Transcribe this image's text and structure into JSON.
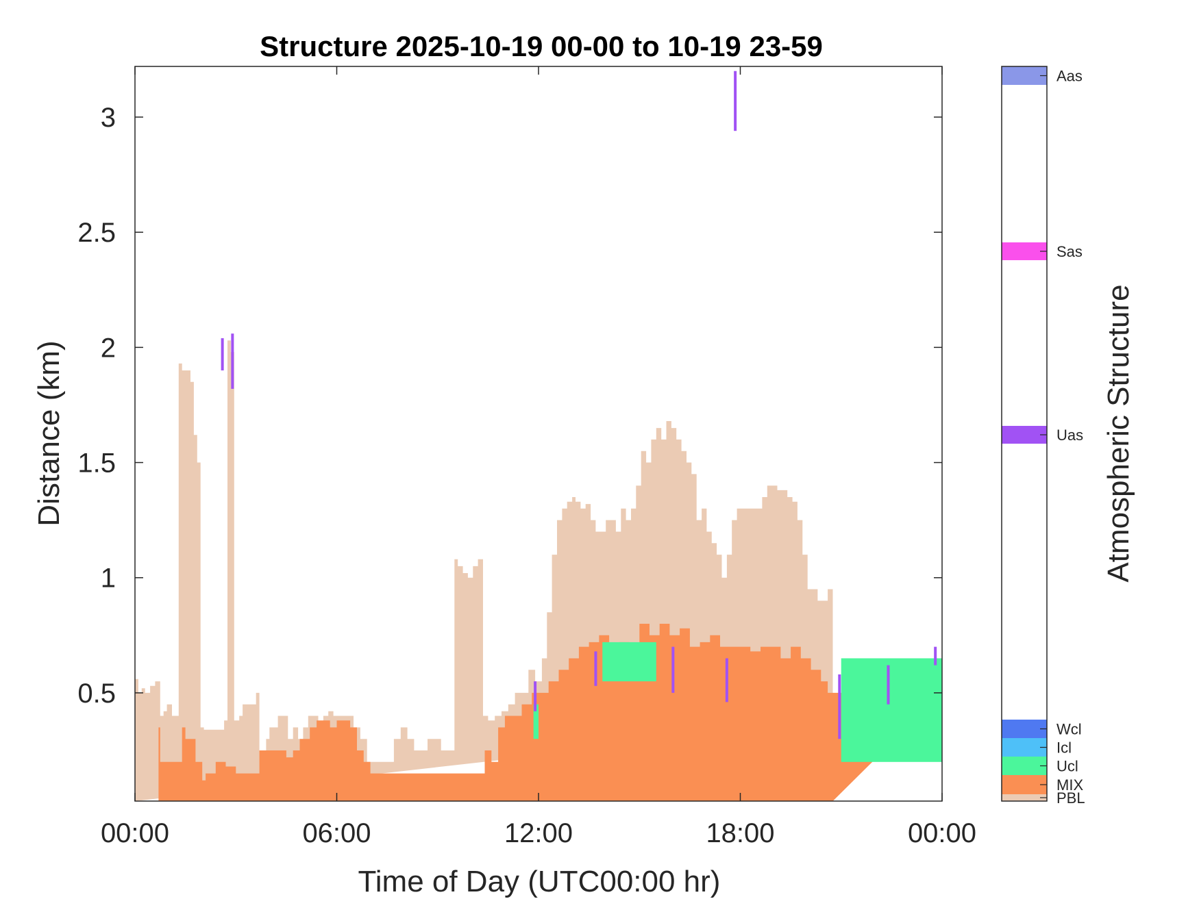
{
  "chart_data": {
    "type": "area",
    "title": "Structure 2025-10-19 00-00 to 10-19 23-59",
    "xlabel": "Time of Day (UTC00:00 hr)",
    "ylabel": "Distance (km)",
    "xlim": [
      0,
      24
    ],
    "ylim": [
      0.03,
      3.22
    ],
    "xticks": [
      0,
      6,
      12,
      18,
      24
    ],
    "xtick_labels": [
      "00:00",
      "06:00",
      "12:00",
      "18:00",
      "00:00"
    ],
    "yticks": [
      0.5,
      1,
      1.5,
      2,
      2.5,
      3
    ],
    "ytick_labels": [
      "0.5",
      "1",
      "1.5",
      "2",
      "2.5",
      "3"
    ],
    "grid": false,
    "colorbar": {
      "label": "Atmospheric Structure",
      "categories": [
        {
          "name": "PBL",
          "color": "#EBCBB4"
        },
        {
          "name": "MIX",
          "color": "#FA8F53"
        },
        {
          "name": "Ucl",
          "color": "#4BF69B"
        },
        {
          "name": "Icl",
          "color": "#4EC0F8"
        },
        {
          "name": "Wcl",
          "color": "#4F79F1"
        },
        {
          "name": "Uas",
          "color": "#A152F4"
        },
        {
          "name": "Sas",
          "color": "#FA50EC"
        },
        {
          "name": "Aas",
          "color": "#8A97E8"
        }
      ]
    },
    "series": [
      {
        "name": "PBL",
        "color": "#EBCBB4",
        "x": [
          0.0,
          0.1,
          0.2,
          0.3,
          0.45,
          0.6,
          0.75,
          0.85,
          0.95,
          1.1,
          1.25,
          1.3,
          1.4,
          1.55,
          1.65,
          1.75,
          1.85,
          1.95,
          2.05,
          2.15,
          2.3,
          2.5,
          2.65,
          2.75,
          2.85,
          2.95,
          3.1,
          3.2,
          3.35,
          3.5,
          3.6,
          3.7,
          3.8,
          3.9,
          4.0,
          4.1,
          4.25,
          4.4,
          4.55,
          4.7,
          4.85,
          5.0,
          5.15,
          5.3,
          5.45,
          5.6,
          5.75,
          5.9,
          6.1,
          6.3,
          6.5,
          6.7,
          6.9,
          7.1,
          7.3,
          7.5,
          7.7,
          7.9,
          8.1,
          8.3,
          8.5,
          8.7,
          8.9,
          9.1,
          9.3,
          9.5,
          9.6,
          9.75,
          9.9,
          10.05,
          10.2,
          10.35,
          10.5,
          10.7,
          10.9,
          11.1,
          11.3,
          11.5,
          11.7,
          11.9,
          12.1,
          12.25,
          12.4,
          12.55,
          12.7,
          12.85,
          13.0,
          13.1,
          13.25,
          13.4,
          13.55,
          13.7,
          13.85,
          14.0,
          14.15,
          14.3,
          14.45,
          14.6,
          14.75,
          14.9,
          15.05,
          15.2,
          15.35,
          15.5,
          15.65,
          15.8,
          15.95,
          16.1,
          16.25,
          16.4,
          16.55,
          16.7,
          16.85,
          17.0,
          17.15,
          17.3,
          17.45,
          17.6,
          17.75,
          17.9,
          18.05,
          18.2,
          18.35,
          18.5,
          18.65,
          18.8,
          18.95,
          19.1,
          19.25,
          19.4,
          19.55,
          19.7,
          19.85,
          20.0,
          20.15,
          20.3,
          20.45,
          20.6,
          20.75,
          20.9,
          21.05,
          21.2,
          21.4,
          21.6,
          21.8,
          22.0,
          22.2,
          22.4,
          22.6,
          22.8,
          23.0,
          23.2,
          23.4,
          23.6,
          23.8,
          24.0
        ],
        "top": [
          0.56,
          0.5,
          0.52,
          0.5,
          0.53,
          0.55,
          0.4,
          0.42,
          0.45,
          0.4,
          0.4,
          1.93,
          1.9,
          1.9,
          1.85,
          1.62,
          1.5,
          0.35,
          0.34,
          0.34,
          0.34,
          0.34,
          0.38,
          2.03,
          1.98,
          0.38,
          0.4,
          0.45,
          0.45,
          0.45,
          0.5,
          0.25,
          0.25,
          0.3,
          0.35,
          0.35,
          0.4,
          0.4,
          0.3,
          0.35,
          0.3,
          0.35,
          0.4,
          0.4,
          0.35,
          0.4,
          0.42,
          0.4,
          0.4,
          0.4,
          0.35,
          0.3,
          0.2,
          0.2,
          0.2,
          0.2,
          0.3,
          0.35,
          0.3,
          0.25,
          0.25,
          0.3,
          0.3,
          0.25,
          0.25,
          1.08,
          1.05,
          1.02,
          1.0,
          1.05,
          1.08,
          0.4,
          0.38,
          0.4,
          0.42,
          0.45,
          0.5,
          0.5,
          0.6,
          0.55,
          0.65,
          0.85,
          1.1,
          1.25,
          1.3,
          1.33,
          1.35,
          1.33,
          1.3,
          1.32,
          1.25,
          1.2,
          1.2,
          1.25,
          1.25,
          1.2,
          1.3,
          1.25,
          1.3,
          1.4,
          1.55,
          1.5,
          1.6,
          1.65,
          1.6,
          1.68,
          1.65,
          1.6,
          1.55,
          1.5,
          1.45,
          1.25,
          1.3,
          1.2,
          1.15,
          1.1,
          1.0,
          1.1,
          1.25,
          1.3,
          1.3,
          1.3,
          1.3,
          1.3,
          1.35,
          1.4,
          1.4,
          1.38,
          1.38,
          1.35,
          1.33,
          1.25,
          1.1,
          0.95,
          0.95,
          0.9,
          0.9,
          0.95,
          0.43,
          0.42,
          0.45,
          0.4,
          0.45,
          0.4,
          0.42,
          0.45,
          0.4,
          0.42,
          0.4,
          0.42,
          0.45,
          0.4,
          0.42,
          0.42
        ]
      },
      {
        "name": "MIX",
        "color": "#FA8F53",
        "x": [
          0.7,
          0.75,
          1.3,
          1.4,
          1.5,
          1.6,
          1.8,
          2.0,
          2.1,
          2.4,
          2.7,
          3.0,
          3.7,
          3.9,
          4.1,
          4.3,
          4.5,
          4.7,
          4.9,
          5.2,
          5.4,
          5.6,
          5.8,
          6.0,
          6.2,
          6.4,
          6.6,
          6.8,
          7.0,
          7.2,
          7.4,
          10.4,
          10.6,
          10.8,
          11.0,
          11.2,
          11.5,
          11.8,
          12.0,
          12.3,
          12.6,
          12.9,
          13.2,
          13.5,
          13.8,
          14.1,
          14.4,
          14.7,
          15.0,
          15.3,
          15.6,
          15.9,
          16.2,
          16.5,
          16.8,
          17.1,
          17.4,
          17.7,
          18.0,
          18.3,
          18.6,
          18.9,
          19.2,
          19.5,
          19.8,
          20.1,
          20.4,
          20.6
        ],
        "top": [
          0.35,
          0.2,
          0.2,
          0.35,
          0.3,
          0.3,
          0.2,
          0.12,
          0.15,
          0.2,
          0.18,
          0.15,
          0.25,
          0.25,
          0.25,
          0.25,
          0.22,
          0.25,
          0.3,
          0.35,
          0.38,
          0.38,
          0.35,
          0.38,
          0.38,
          0.35,
          0.25,
          0.2,
          0.15,
          0.15,
          0.15,
          0.25,
          0.2,
          0.35,
          0.4,
          0.4,
          0.45,
          0.5,
          0.5,
          0.55,
          0.6,
          0.65,
          0.7,
          0.72,
          0.75,
          0.7,
          0.72,
          0.7,
          0.8,
          0.75,
          0.8,
          0.75,
          0.78,
          0.7,
          0.72,
          0.75,
          0.7,
          0.7,
          0.7,
          0.68,
          0.7,
          0.7,
          0.65,
          0.7,
          0.65,
          0.6,
          0.55,
          0.5
        ]
      }
    ],
    "ucl_segments": {
      "name": "Ucl",
      "color": "#4BF69B",
      "intervals": [
        [
          11.85,
          12.0,
          0.3,
          0.45
        ],
        [
          13.9,
          15.5,
          0.55,
          0.72
        ],
        [
          21.0,
          24.0,
          0.2,
          0.65
        ]
      ]
    },
    "uas_marks": {
      "name": "Uas",
      "color": "#A152F4",
      "points": [
        [
          2.6,
          1.9,
          2.04
        ],
        [
          2.9,
          1.82,
          2.06
        ],
        [
          17.85,
          2.94,
          3.2
        ],
        [
          11.9,
          0.42,
          0.55
        ],
        [
          13.7,
          0.53,
          0.68
        ],
        [
          16.0,
          0.5,
          0.7
        ],
        [
          17.6,
          0.46,
          0.65
        ],
        [
          20.95,
          0.3,
          0.58
        ],
        [
          22.4,
          0.45,
          0.62
        ],
        [
          23.8,
          0.62,
          0.7
        ]
      ]
    }
  }
}
